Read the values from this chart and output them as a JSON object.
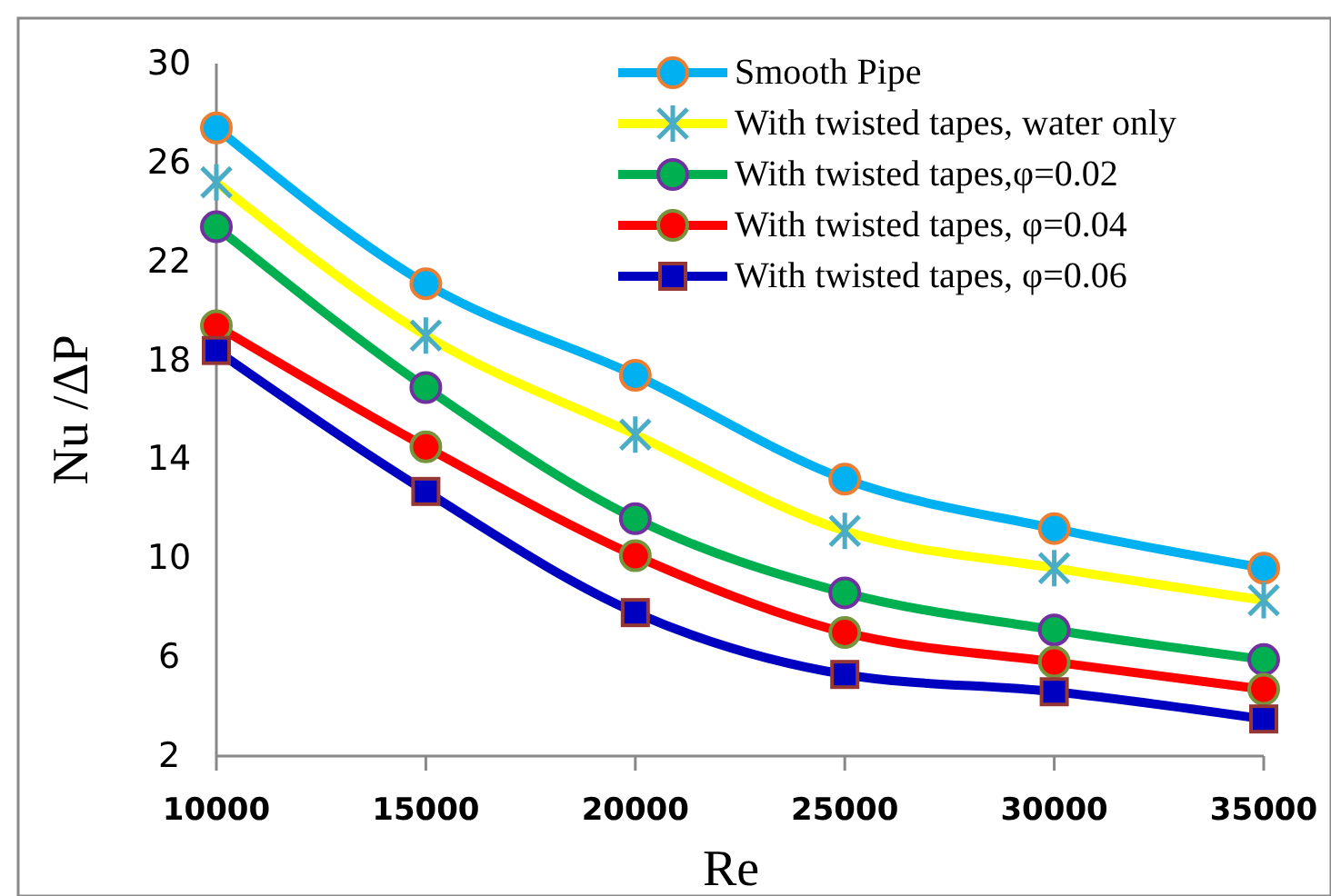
{
  "chart_data": {
    "type": "line",
    "xlabel": "Re",
    "ylabel": "Nu /ΔP",
    "x": [
      10000,
      15000,
      20000,
      25000,
      30000,
      35000
    ],
    "xlim": [
      10000,
      35000
    ],
    "xticks": [
      10000,
      15000,
      20000,
      25000,
      30000,
      35000
    ],
    "ylim": [
      2,
      30
    ],
    "yticks": [
      2,
      6,
      10,
      14,
      18,
      22,
      26,
      30
    ],
    "grid": false,
    "legend": "top right",
    "series": [
      {
        "name": "Smooth Pipe",
        "color": "#00b0f0",
        "marker": "circle",
        "values": [
          27.4,
          21.1,
          17.4,
          13.2,
          11.2,
          9.6
        ]
      },
      {
        "name": "With twisted tapes, water only",
        "color": "#ffff00",
        "marker": "cross",
        "values": [
          25.2,
          19.0,
          15.0,
          11.1,
          9.6,
          8.3
        ]
      },
      {
        "name": "With twisted tapes,φ=0.02",
        "color": "#00b050",
        "marker": "circle",
        "values": [
          23.4,
          16.9,
          11.6,
          8.6,
          7.1,
          5.9
        ]
      },
      {
        "name": "With twisted tapes, φ=0.04",
        "color": "#ff0000",
        "marker": "circle",
        "values": [
          19.4,
          14.5,
          10.1,
          7.0,
          5.8,
          4.7
        ]
      },
      {
        "name": "With twisted tapes, φ=0.06",
        "color": "#0000c0",
        "marker": "square",
        "values": [
          18.4,
          12.7,
          7.8,
          5.3,
          4.6,
          3.5
        ]
      }
    ]
  }
}
